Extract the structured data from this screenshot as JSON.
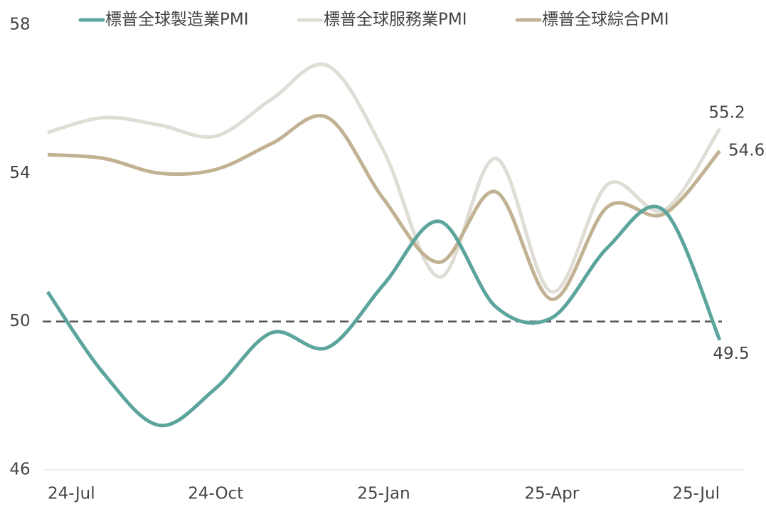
{
  "chart_data": {
    "type": "line",
    "categories": [
      "24-Jul",
      null,
      null,
      "24-Oct",
      null,
      null,
      "25-Jan",
      null,
      null,
      "25-Apr",
      null,
      null,
      "25-Jul"
    ],
    "series": [
      {
        "name": "標普全球製造業PMI",
        "color": "#5ba59c",
        "values": [
          50.8,
          48.6,
          47.2,
          48.2,
          49.7,
          49.3,
          51.0,
          52.7,
          50.4,
          50.1,
          52.0,
          53.0,
          49.5
        ]
      },
      {
        "name": "標普全球服務業PMI",
        "color": "#e0ddd6",
        "values": [
          55.1,
          55.5,
          55.3,
          55.0,
          56.0,
          56.9,
          54.6,
          51.2,
          54.4,
          50.8,
          53.7,
          53.0,
          55.2
        ]
      },
      {
        "name": "標普全球綜合PMI",
        "color": "#c2b293",
        "values": [
          54.5,
          54.4,
          54.0,
          54.1,
          54.8,
          55.5,
          53.3,
          51.6,
          53.5,
          50.6,
          53.1,
          52.9,
          54.6
        ]
      }
    ],
    "ylim": [
      46,
      58
    ],
    "yticks": [
      46,
      50,
      54,
      58
    ],
    "reference_line": 50,
    "grid": false
  }
}
